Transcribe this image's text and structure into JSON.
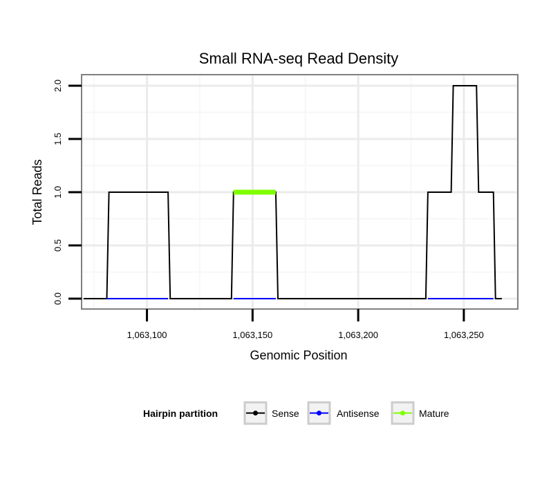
{
  "chart_data": {
    "type": "line",
    "title": "Small RNA-seq Read Density",
    "xlabel": "Genomic Position",
    "ylabel": "Total Reads",
    "xlim": [
      1063072,
      1063270
    ],
    "ylim": [
      0,
      2.05
    ],
    "x_ticks": [
      {
        "value": 1063100,
        "label": "1,063,100"
      },
      {
        "value": 1063150,
        "label": "1,063,150"
      },
      {
        "value": 1063200,
        "label": "1,063,200"
      },
      {
        "value": 1063250,
        "label": "1,063,250"
      }
    ],
    "y_ticks": [
      {
        "value": 0,
        "label": "0.0"
      },
      {
        "value": 0.5,
        "label": "0.5"
      },
      {
        "value": 1,
        "label": "1.0"
      },
      {
        "value": 1.5,
        "label": "1.5"
      },
      {
        "value": 2,
        "label": "2.0"
      }
    ],
    "grid": true,
    "series": [
      {
        "name": "Sense",
        "color": "#000000",
        "points": [
          [
            1063070,
            0
          ],
          [
            1063081,
            0
          ],
          [
            1063082,
            1
          ],
          [
            1063110,
            1
          ],
          [
            1063111,
            0
          ],
          [
            1063140,
            0
          ],
          [
            1063141,
            1
          ],
          [
            1063161,
            1
          ],
          [
            1063162,
            0
          ],
          [
            1063232,
            0
          ],
          [
            1063233,
            1
          ],
          [
            1063244,
            1
          ],
          [
            1063245,
            2
          ],
          [
            1063256,
            2
          ],
          [
            1063257,
            1
          ],
          [
            1063264,
            1
          ],
          [
            1063265,
            0
          ],
          [
            1063268,
            0
          ]
        ]
      },
      {
        "name": "Antisense",
        "color": "#0000ff",
        "points": [
          [
            1063081,
            0
          ],
          [
            1063110,
            0
          ]
        ],
        "extra_segments": [
          [
            [
              1063141,
              0
            ],
            [
              1063161,
              0
            ]
          ],
          [
            [
              1063233,
              0
            ],
            [
              1063264,
              0
            ]
          ]
        ]
      },
      {
        "name": "Mature",
        "color": "#7fff00",
        "points": [
          [
            1063141,
            1
          ],
          [
            1063161,
            1
          ]
        ]
      }
    ],
    "legend": {
      "title": "Hairpin partition",
      "position": "bottom",
      "entries": [
        {
          "label": "Sense",
          "color": "#000000"
        },
        {
          "label": "Antisense",
          "color": "#0000ff"
        },
        {
          "label": "Mature",
          "color": "#7fff00"
        }
      ]
    }
  }
}
